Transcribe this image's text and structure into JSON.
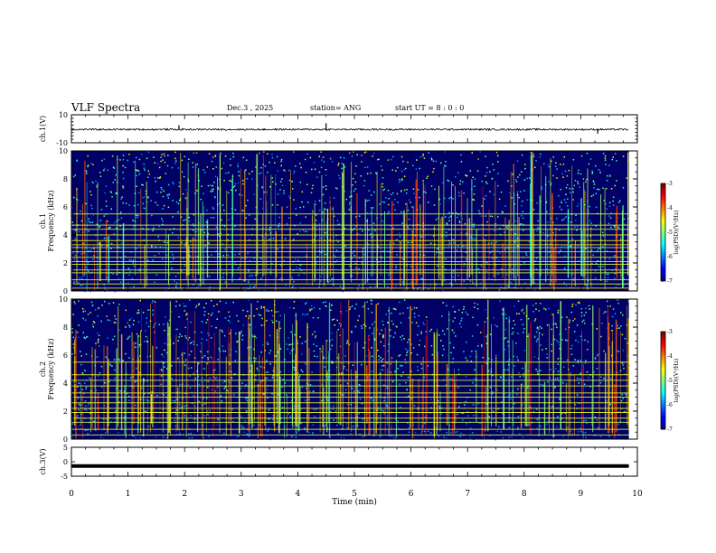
{
  "header": {
    "title": "VLF Spectra",
    "date": "Dec.3  , 2025",
    "station": "station= ANG",
    "start_ut": "start  UT  =   8  : 0   : 0"
  },
  "colors": {
    "jet": [
      "#00008f",
      "#0000ff",
      "#0080ff",
      "#00ffff",
      "#80ff80",
      "#ffff00",
      "#ff8000",
      "#ff0000",
      "#800000"
    ],
    "background": "#000066"
  },
  "chart_data": [
    {
      "type": "line",
      "name": "ch1-waveform",
      "ylabel": "ch.1(V)",
      "ylim": [
        -10,
        10
      ],
      "yticks": [
        10,
        -10
      ],
      "baseline": -0.5,
      "noise_amplitude": 0.6,
      "spikes": [
        {
          "t": 1.9,
          "v": 2.5
        },
        {
          "t": 4.5,
          "v": 4.0
        },
        {
          "t": 9.3,
          "v": -3.5
        }
      ],
      "xlim": [
        0,
        10
      ]
    },
    {
      "type": "heatmap",
      "name": "ch1-spectrogram",
      "ylabel_top": "ch.1",
      "ylabel": "Frequency (kHz)",
      "ylim": [
        0,
        10
      ],
      "yticks": [
        0,
        2,
        4,
        6,
        8,
        10
      ],
      "xlim": [
        0,
        10
      ],
      "time_span_min": 9.85,
      "lines_khz": [
        0.2,
        0.5,
        0.8,
        1.3,
        1.5,
        1.9,
        2.1,
        2.4,
        2.8,
        3.1,
        3.3,
        3.6,
        4.0,
        4.4,
        4.7,
        5.5
      ],
      "colorbar": {
        "label": "log(PSD)(V²/Hz)",
        "min": -7,
        "max": -3,
        "ticks": [
          -3,
          -4,
          -5,
          -6,
          -7
        ]
      }
    },
    {
      "type": "heatmap",
      "name": "ch2-spectrogram",
      "ylabel_top": "ch.2",
      "ylabel": "Frequency (kHz)",
      "ylim": [
        0,
        10
      ],
      "yticks": [
        0,
        2,
        4,
        6,
        8,
        10
      ],
      "xlim": [
        0,
        10
      ],
      "time_span_min": 9.85,
      "lines_khz": [
        0.3,
        0.7,
        1.2,
        1.5,
        1.9,
        2.2,
        2.6,
        3.0,
        3.3,
        3.8,
        4.2,
        4.6,
        5.5
      ],
      "colorbar": {
        "label": "log(PSD)(V²/Hz)",
        "min": -7,
        "max": -3,
        "ticks": [
          -3,
          -4,
          -5,
          -6,
          -7
        ]
      }
    },
    {
      "type": "line",
      "name": "ch3-waveform",
      "ylabel": "ch.3(V)",
      "ylim": [
        -5,
        5
      ],
      "yticks": [
        5,
        0,
        -5
      ],
      "baseline": -1.5,
      "xlim": [
        0,
        10
      ]
    }
  ],
  "xaxis": {
    "label": "Time  (min)",
    "ticks": [
      0,
      1,
      2,
      3,
      4,
      5,
      6,
      7,
      8,
      9,
      10
    ]
  }
}
